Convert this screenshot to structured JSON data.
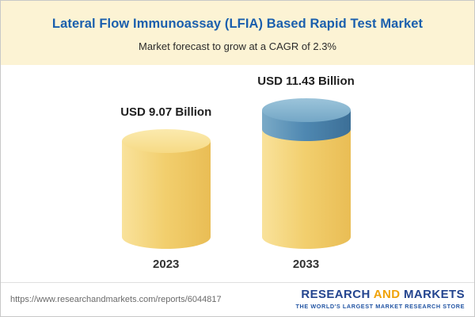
{
  "header": {
    "title": "Lateral Flow Immunoassay (LFIA) Based Rapid Test Market",
    "subtitle": "Market forecast to grow at a CAGR of 2.3%"
  },
  "chart_data": {
    "type": "bar",
    "categories": [
      "2023",
      "2033"
    ],
    "values": [
      9.07,
      11.43
    ],
    "value_labels": [
      "USD 9.07 Billion",
      "USD 11.43 Billion"
    ],
    "title": "Lateral Flow Immunoassay (LFIA) Based Rapid Test Market",
    "subtitle": "Market forecast to grow at a CAGR of 2.3%",
    "unit": "USD Billion",
    "cagr_percent": 2.3,
    "xlabel": "",
    "ylabel": "",
    "legend": [],
    "layout_hints": {
      "bar_style": "3d-cylinder",
      "grid": false,
      "growth_cap_on": "2033"
    },
    "colors": {
      "bar_yellow": "#f2cf6e",
      "growth_cap_blue": "#4f88b1",
      "header_band": "#fcf3d4",
      "title_blue": "#1a5fad"
    }
  },
  "footer": {
    "url": "https://www.researchandmarkets.com/reports/6044817",
    "logo": {
      "research": "RESEARCH",
      "and": "AND",
      "markets": "MARKETS",
      "tagline": "THE WORLD'S LARGEST MARKET RESEARCH STORE"
    }
  }
}
